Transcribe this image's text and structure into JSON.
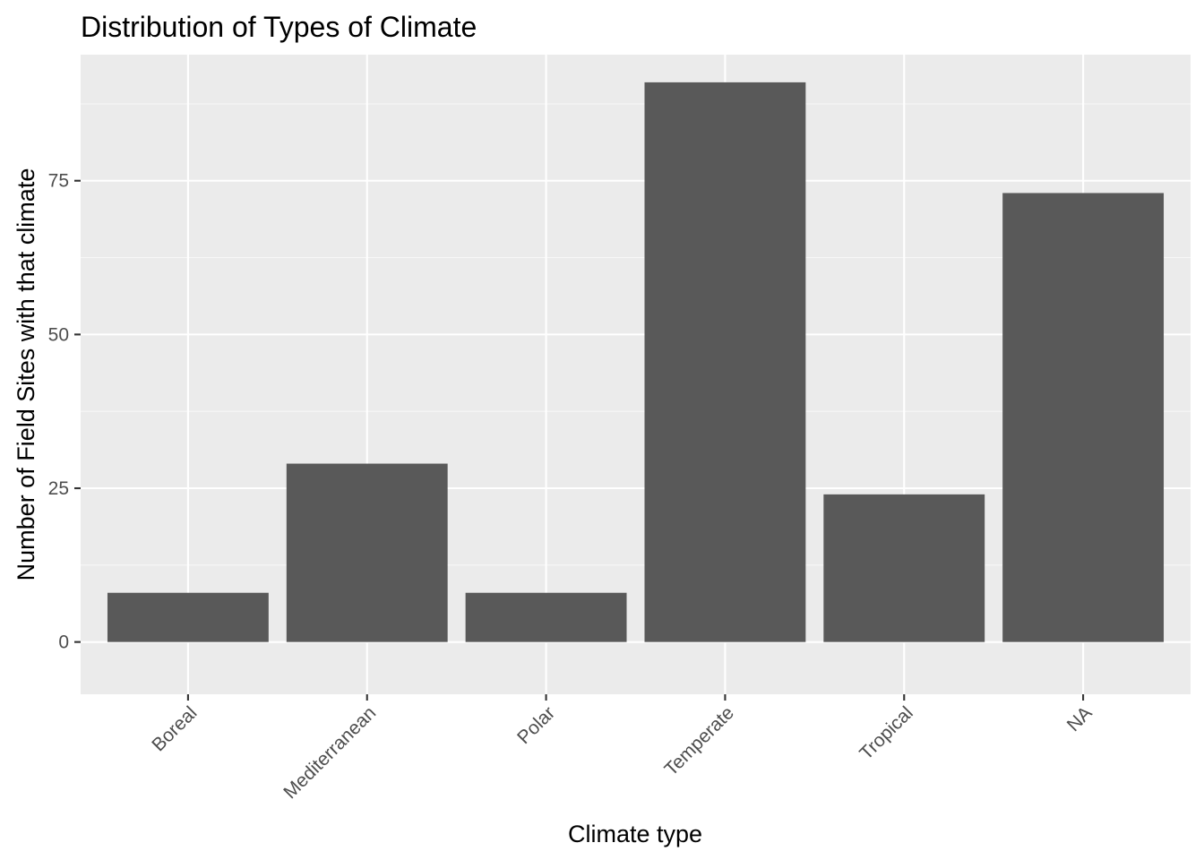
{
  "chart_data": {
    "type": "bar",
    "title": "Distribution of Types of Climate",
    "xlabel": "Climate type",
    "ylabel": "Number of Field Sites with that climate",
    "categories": [
      "Boreal",
      "Mediterranean",
      "Polar",
      "Temperate",
      "Tropical",
      "NA"
    ],
    "values": [
      8,
      29,
      8,
      91,
      24,
      73
    ],
    "ylim": [
      -8.5,
      95.5
    ],
    "yticks": [
      0,
      25,
      50,
      75
    ],
    "ytick_labels": [
      "0",
      "25",
      "50",
      "75"
    ],
    "y_minor_ticks": [
      12.5,
      37.5,
      62.5,
      87.5
    ],
    "x_tick_label_rotation": "45 degrees",
    "grid": true,
    "legend": "none",
    "colors": {
      "panel_background": "#EBEBEB",
      "grid_major": "#FFFFFF",
      "grid_minor": "#F7F7F7",
      "bar_fill": "#595959",
      "tick_mark": "#333333",
      "tick_label": "#4D4D4D",
      "text": "#000000"
    }
  }
}
